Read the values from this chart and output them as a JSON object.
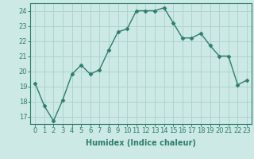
{
  "x": [
    0,
    1,
    2,
    3,
    4,
    5,
    6,
    7,
    8,
    9,
    10,
    11,
    12,
    13,
    14,
    15,
    16,
    17,
    18,
    19,
    20,
    21,
    22,
    23
  ],
  "y": [
    19.2,
    17.7,
    16.7,
    18.1,
    19.8,
    20.4,
    19.8,
    20.1,
    21.4,
    22.6,
    22.8,
    24.0,
    24.0,
    24.0,
    24.2,
    23.2,
    22.2,
    22.2,
    22.5,
    21.7,
    21.0,
    21.0,
    19.1,
    19.4
  ],
  "line_color": "#2e7d6e",
  "bg_color": "#cce9e5",
  "grid_color": "#aed4cf",
  "xlabel": "Humidex (Indice chaleur)",
  "ylabel": "",
  "ylim": [
    16.5,
    24.5
  ],
  "xlim": [
    -0.5,
    23.5
  ],
  "yticks": [
    17,
    18,
    19,
    20,
    21,
    22,
    23,
    24
  ],
  "xticks": [
    0,
    1,
    2,
    3,
    4,
    5,
    6,
    7,
    8,
    9,
    10,
    11,
    12,
    13,
    14,
    15,
    16,
    17,
    18,
    19,
    20,
    21,
    22,
    23
  ],
  "marker": "D",
  "markersize": 2.5,
  "linewidth": 1.0,
  "axis_fontsize": 7,
  "tick_fontsize": 6
}
